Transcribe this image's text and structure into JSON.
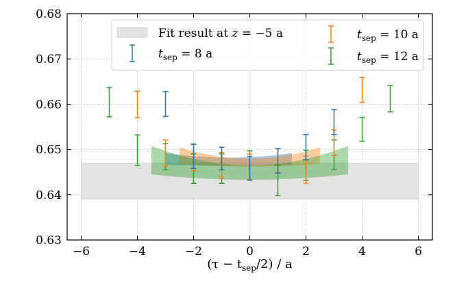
{
  "chart_data": {
    "type": "scatter",
    "xlabel_parts": [
      "(τ − t",
      "sep",
      "/2) / a"
    ],
    "ylabel": "",
    "xlim": [
      -6.5,
      6.5
    ],
    "ylim": [
      0.63,
      0.68
    ],
    "xticks": [
      -6,
      -4,
      -2,
      0,
      2,
      4,
      6
    ],
    "yticks": [
      0.63,
      0.64,
      0.65,
      0.66,
      0.67,
      0.68
    ],
    "ytick_labels": [
      "0.63",
      "0.64",
      "0.65",
      "0.66",
      "0.67",
      "0.68"
    ],
    "grid": true,
    "legend_position": "top",
    "fit_band": {
      "label_prefix": "Fit result at ",
      "label_var": "z",
      "label_suffix": " = −5 a",
      "x": [
        -6,
        6
      ],
      "ylow": 0.639,
      "yhigh": 0.647,
      "color": "#e3e3e3"
    },
    "series": [
      {
        "name": "t_sep = 8 a",
        "label_main": "t",
        "label_sub": "sep",
        "label_rest": " = 8 a",
        "color": "#1f77b4",
        "points": [
          {
            "x": -3,
            "y": 0.66,
            "lo": 0.6573,
            "hi": 0.6628
          },
          {
            "x": -2,
            "y": 0.6485,
            "lo": 0.6458,
            "hi": 0.6512
          },
          {
            "x": -1,
            "y": 0.648,
            "lo": 0.6455,
            "hi": 0.6505
          },
          {
            "x": 0,
            "y": 0.6458,
            "lo": 0.6432,
            "hi": 0.6485
          },
          {
            "x": 1,
            "y": 0.6475,
            "lo": 0.6448,
            "hi": 0.6502
          },
          {
            "x": 2,
            "y": 0.6505,
            "lo": 0.6477,
            "hi": 0.6533
          },
          {
            "x": 3,
            "y": 0.656,
            "lo": 0.6533,
            "hi": 0.6588
          }
        ],
        "band": {
          "xmin": -3,
          "xmax": 1.5,
          "ylow_c": 0.6464,
          "yhigh_c": 0.6482,
          "ylow_e": 0.6466,
          "yhigh_e": 0.6492
        }
      },
      {
        "name": "t_sep = 10 a",
        "label_main": "t",
        "label_sub": "sep",
        "label_rest": " = 10 a",
        "color": "#ff7f0e",
        "points": [
          {
            "x": -4,
            "y": 0.66,
            "lo": 0.657,
            "hi": 0.6629
          },
          {
            "x": -3,
            "y": 0.6492,
            "lo": 0.6463,
            "hi": 0.6521
          },
          {
            "x": -2,
            "y": 0.6482,
            "lo": 0.6453,
            "hi": 0.6511
          },
          {
            "x": -1,
            "y": 0.6465,
            "lo": 0.6437,
            "hi": 0.6493
          },
          {
            "x": 0,
            "y": 0.6462,
            "lo": 0.6434,
            "hi": 0.649
          },
          {
            "x": 1,
            "y": 0.6475,
            "lo": 0.6449,
            "hi": 0.6502
          },
          {
            "x": 2,
            "y": 0.6455,
            "lo": 0.6425,
            "hi": 0.6485
          },
          {
            "x": 3,
            "y": 0.6515,
            "lo": 0.6487,
            "hi": 0.6543
          },
          {
            "x": 4,
            "y": 0.6632,
            "lo": 0.6604,
            "hi": 0.6659
          }
        ],
        "band": {
          "xmin": -2.5,
          "xmax": 2.5,
          "ylow_c": 0.6462,
          "yhigh_c": 0.648,
          "ylow_e": 0.6468,
          "yhigh_e": 0.6505
        }
      },
      {
        "name": "t_sep = 12 a",
        "label_main": "t",
        "label_sub": "sep",
        "label_rest": " = 12 a",
        "color": "#2ca02c",
        "points": [
          {
            "x": -5,
            "y": 0.6605,
            "lo": 0.6572,
            "hi": 0.6637
          },
          {
            "x": -4,
            "y": 0.6498,
            "lo": 0.6465,
            "hi": 0.6532
          },
          {
            "x": -3,
            "y": 0.6483,
            "lo": 0.6455,
            "hi": 0.6513
          },
          {
            "x": -2,
            "y": 0.6458,
            "lo": 0.6425,
            "hi": 0.649
          },
          {
            "x": -1,
            "y": 0.6458,
            "lo": 0.6425,
            "hi": 0.649
          },
          {
            "x": 0,
            "y": 0.6465,
            "lo": 0.6432,
            "hi": 0.6497
          },
          {
            "x": 1,
            "y": 0.6432,
            "lo": 0.6398,
            "hi": 0.6465
          },
          {
            "x": 2,
            "y": 0.6465,
            "lo": 0.6432,
            "hi": 0.6498
          },
          {
            "x": 3,
            "y": 0.6488,
            "lo": 0.6455,
            "hi": 0.6521
          },
          {
            "x": 4,
            "y": 0.6545,
            "lo": 0.6518,
            "hi": 0.6571
          },
          {
            "x": 5,
            "y": 0.6612,
            "lo": 0.6583,
            "hi": 0.6641
          }
        ],
        "band": {
          "xmin": -3.5,
          "xmax": 3.5,
          "ylow_c": 0.6433,
          "yhigh_c": 0.6465,
          "ylow_e": 0.6445,
          "yhigh_e": 0.6508
        }
      }
    ]
  }
}
